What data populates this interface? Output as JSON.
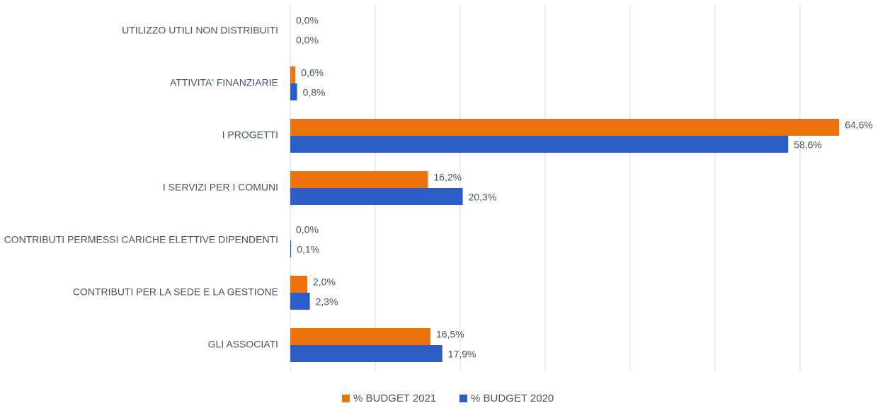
{
  "chart_data": {
    "type": "hbar",
    "categories": [
      "UTILIZZO UTILI NON DISTRIBUITI",
      "ATTIVITA' FINANZIARIE",
      "I PROGETTI",
      "I SERVIZI PER I COMUNI",
      "CONTRIBUTI PERMESSI CARICHE ELETTIVE DIPENDENTI",
      "CONTRIBUTI PER LA SEDE E LA GESTIONE",
      "GLI ASSOCIATI"
    ],
    "series": [
      {
        "name": "% BUDGET 2021",
        "color": "#ed730f",
        "values": [
          0.0,
          0.6,
          64.6,
          16.2,
          0.0,
          2.0,
          16.5
        ],
        "value_labels": [
          "0,0%",
          "0,6%",
          "64,6%",
          "16,2%",
          "0,0%",
          "2,0%",
          "16,5%"
        ]
      },
      {
        "name": "% BUDGET 2020",
        "color": "#2c5cc5",
        "values": [
          0.0,
          0.8,
          58.6,
          20.3,
          0.1,
          2.3,
          17.9
        ],
        "value_labels": [
          "0,0%",
          "0,8%",
          "58,6%",
          "20,3%",
          "0,1%",
          "2,3%",
          "17,9%"
        ]
      }
    ],
    "xlim": [
      0,
      70
    ],
    "xticks": [
      0,
      10,
      20,
      30,
      40,
      50,
      60
    ],
    "grid": true,
    "legend": "bottom"
  }
}
